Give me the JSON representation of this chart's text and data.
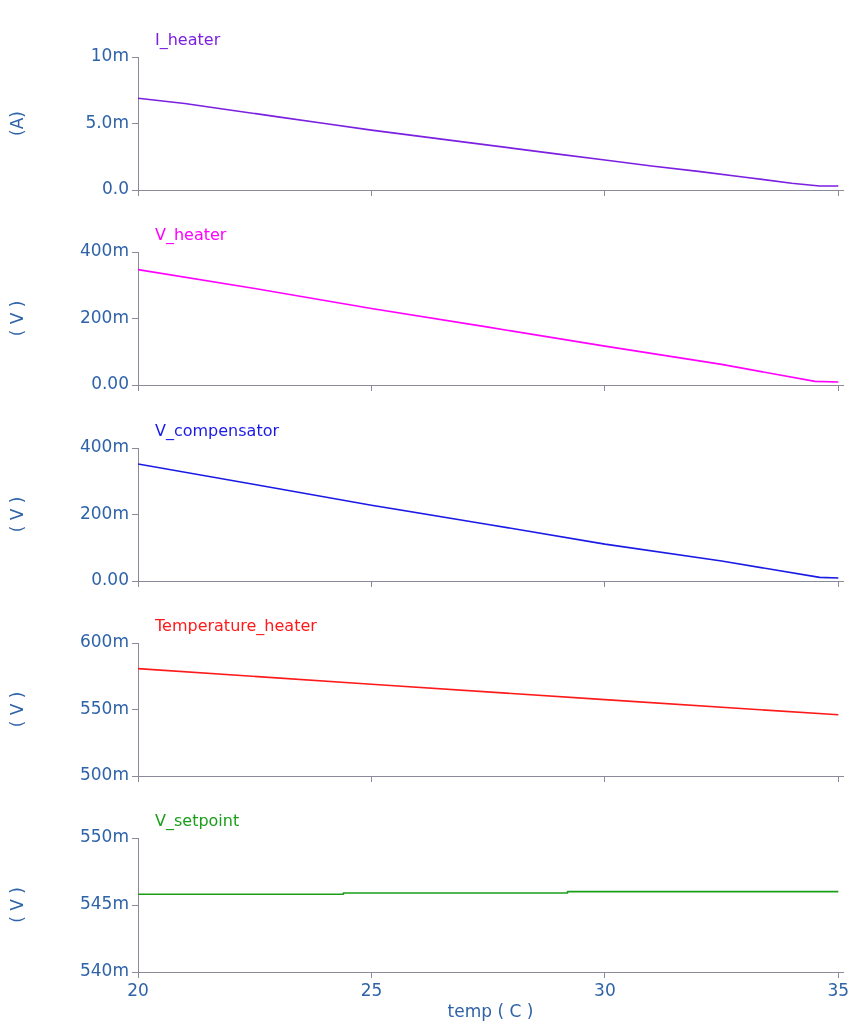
{
  "chart_data": [
    {
      "type": "line",
      "ylabel": "(A)",
      "x": [
        20,
        21,
        22,
        23,
        24,
        25,
        26,
        27,
        28,
        29,
        30,
        31,
        32,
        33,
        34,
        34.6,
        35
      ],
      "series": [
        {
          "name": "I_heater",
          "color": "#7b1fe0",
          "values": [
            6.9,
            6.5,
            6.0,
            5.5,
            5.0,
            4.5,
            4.05,
            3.6,
            3.15,
            2.7,
            2.25,
            1.8,
            1.4,
            0.96,
            0.51,
            0.3,
            0.3
          ]
        }
      ],
      "xlim": [
        20,
        35.1
      ],
      "xticks": [
        20,
        25,
        30,
        35
      ],
      "ylim": [
        0,
        10
      ],
      "yticks": [
        {
          "value": 0,
          "label": "0.0"
        },
        {
          "value": 5,
          "label": "5.0m"
        },
        {
          "value": 10,
          "label": "10m"
        }
      ],
      "tick_labels": "y"
    },
    {
      "type": "line",
      "ylabel": "( V )",
      "x": [
        20,
        22.5,
        25,
        27.5,
        30,
        32.5,
        34.5,
        35
      ],
      "series": [
        {
          "name": "V_heater",
          "color": "#ff00ff",
          "values": [
            347,
            290,
            230,
            174,
            117,
            62,
            11,
            9
          ]
        }
      ],
      "xlim": [
        20,
        35.1
      ],
      "xticks": [
        20,
        25,
        30,
        35
      ],
      "ylim": [
        0,
        400
      ],
      "yticks": [
        {
          "value": 0,
          "label": "0.00"
        },
        {
          "value": 200,
          "label": "200m"
        },
        {
          "value": 400,
          "label": "400m"
        }
      ],
      "tick_labels": "y"
    },
    {
      "type": "line",
      "ylabel": "( V )",
      "x": [
        20,
        22.5,
        25,
        27.5,
        30,
        32.5,
        34.6,
        35
      ],
      "series": [
        {
          "name": "V_compensator",
          "color": "#1a1ae6",
          "values": [
            352,
            290,
            228,
            170,
            111,
            60,
            11,
            9
          ]
        }
      ],
      "xlim": [
        20,
        35.1
      ],
      "xticks": [
        20,
        25,
        30,
        35
      ],
      "ylim": [
        0,
        400
      ],
      "yticks": [
        {
          "value": 0,
          "label": "0.00"
        },
        {
          "value": 200,
          "label": "200m"
        },
        {
          "value": 400,
          "label": "400m"
        }
      ],
      "tick_labels": "y"
    },
    {
      "type": "line",
      "ylabel": "( V )",
      "x": [
        20,
        25,
        30,
        35
      ],
      "series": [
        {
          "name": "Temperature_heater",
          "color": "#ff1a1a",
          "values": [
            580.7,
            569,
            557.4,
            546
          ]
        }
      ],
      "xlim": [
        20,
        35.1
      ],
      "xticks": [
        20,
        25,
        30,
        35
      ],
      "ylim": [
        500,
        600
      ],
      "yticks": [
        {
          "value": 500,
          "label": "500m"
        },
        {
          "value": 550,
          "label": "550m"
        },
        {
          "value": 600,
          "label": "600m"
        }
      ],
      "tick_labels": "y"
    },
    {
      "type": "step",
      "ylabel": "( V )",
      "xlabel": "temp ( C )",
      "x": [
        20,
        24.4,
        29.2,
        35
      ],
      "series": [
        {
          "name": "V_setpoint",
          "color": "#1a9e1a",
          "values": [
            545.8,
            545.9,
            546.0,
            546.0
          ]
        }
      ],
      "xlim": [
        20,
        35.1
      ],
      "xticks": [
        20,
        25,
        30,
        35
      ],
      "ylim": [
        540,
        550
      ],
      "yticks": [
        {
          "value": 540,
          "label": "540m"
        },
        {
          "value": 545,
          "label": "545m"
        },
        {
          "value": 550,
          "label": "550m"
        }
      ]
    }
  ]
}
